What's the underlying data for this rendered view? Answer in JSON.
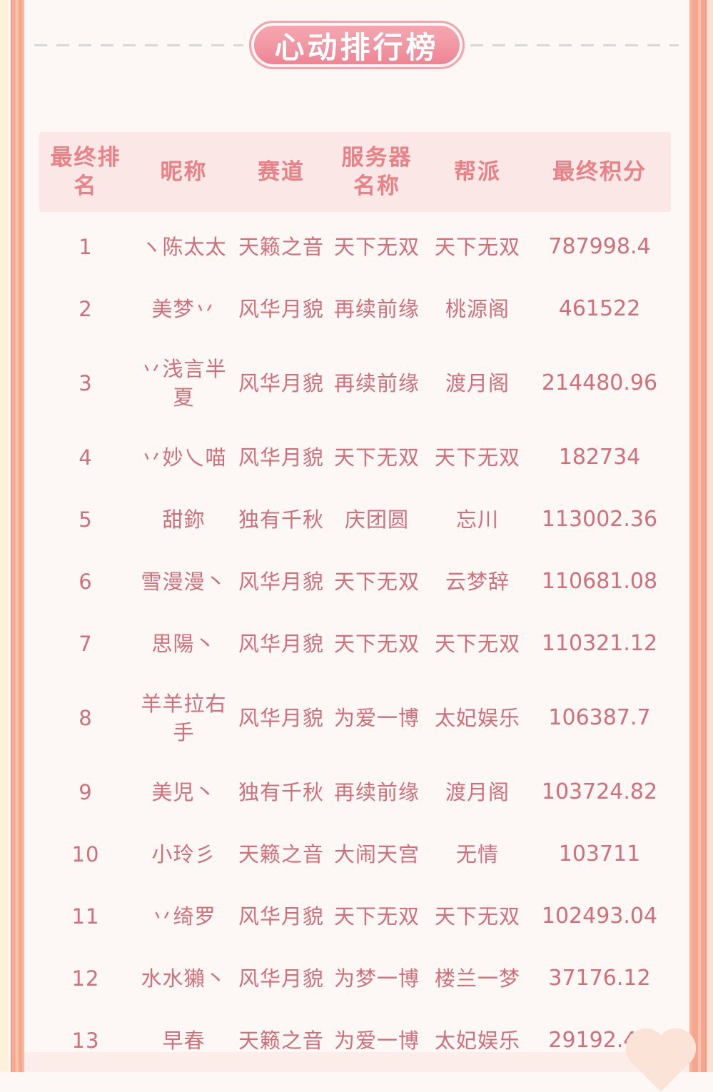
{
  "page": {
    "title": "心动排行榜",
    "colors": {
      "background": "#fdf8f5",
      "badge_pink_top": "#f6a8b1",
      "badge_pink_bottom": "#ed8292",
      "badge_text": "#ffffff",
      "header_bg": "#fbe7e5",
      "header_text": "#e98287",
      "body_text": "#d1707b",
      "border_salmon": "#f5a68e",
      "border_cream": "#fcf1d9",
      "dash_gray": "#d8d8d8"
    }
  },
  "table": {
    "columns": [
      {
        "key": "rank",
        "label": "最终排名"
      },
      {
        "key": "nickname",
        "label": "昵称"
      },
      {
        "key": "track",
        "label": "赛道"
      },
      {
        "key": "server",
        "label": "服务器名称"
      },
      {
        "key": "gang",
        "label": "帮派"
      },
      {
        "key": "score",
        "label": "最终积分"
      }
    ],
    "rows": [
      {
        "rank": "1",
        "nickname": "ヽ陈太太",
        "track": "天籁之音",
        "server": "天下无双",
        "gang": "天下无双",
        "score": "787998.4"
      },
      {
        "rank": "2",
        "nickname": "美梦丷",
        "track": "风华月貌",
        "server": "再续前缘",
        "gang": "桃源阁",
        "score": "461522"
      },
      {
        "rank": "3",
        "nickname": "丷浅言半夏",
        "track": "风华月貌",
        "server": "再续前缘",
        "gang": "渡月阁",
        "score": "214480.96"
      },
      {
        "rank": "4",
        "nickname": "丷妙乀喵",
        "track": "风华月貌",
        "server": "天下无双",
        "gang": "天下无双",
        "score": "182734"
      },
      {
        "rank": "5",
        "nickname": "甜鉨",
        "track": "独有千秋",
        "server": "庆团圆",
        "gang": "忘川",
        "score": "113002.36"
      },
      {
        "rank": "6",
        "nickname": "雪漫漫丶",
        "track": "风华月貌",
        "server": "天下无双",
        "gang": "云梦辞",
        "score": "110681.08"
      },
      {
        "rank": "7",
        "nickname": "思陽丶",
        "track": "风华月貌",
        "server": "天下无双",
        "gang": "天下无双",
        "score": "110321.12"
      },
      {
        "rank": "8",
        "nickname": "羊羊拉右手",
        "track": "风华月貌",
        "server": "为爱一博",
        "gang": "太妃娱乐",
        "score": "106387.7"
      },
      {
        "rank": "9",
        "nickname": "美児丶",
        "track": "独有千秋",
        "server": "再续前缘",
        "gang": "渡月阁",
        "score": "103724.82"
      },
      {
        "rank": "10",
        "nickname": "小玲彡",
        "track": "天籁之音",
        "server": "大闹天宫",
        "gang": "无情",
        "score": "103711"
      },
      {
        "rank": "11",
        "nickname": "丷绮罗",
        "track": "风华月貌",
        "server": "天下无双",
        "gang": "天下无双",
        "score": "102493.04"
      },
      {
        "rank": "12",
        "nickname": "水水獺丶",
        "track": "风华月貌",
        "server": "为梦一博",
        "gang": "楼兰一梦",
        "score": "37176.12"
      },
      {
        "rank": "13",
        "nickname": "早春",
        "track": "天籁之音",
        "server": "为爱一博",
        "gang": "太妃娱乐",
        "score": "29192.42"
      }
    ]
  }
}
